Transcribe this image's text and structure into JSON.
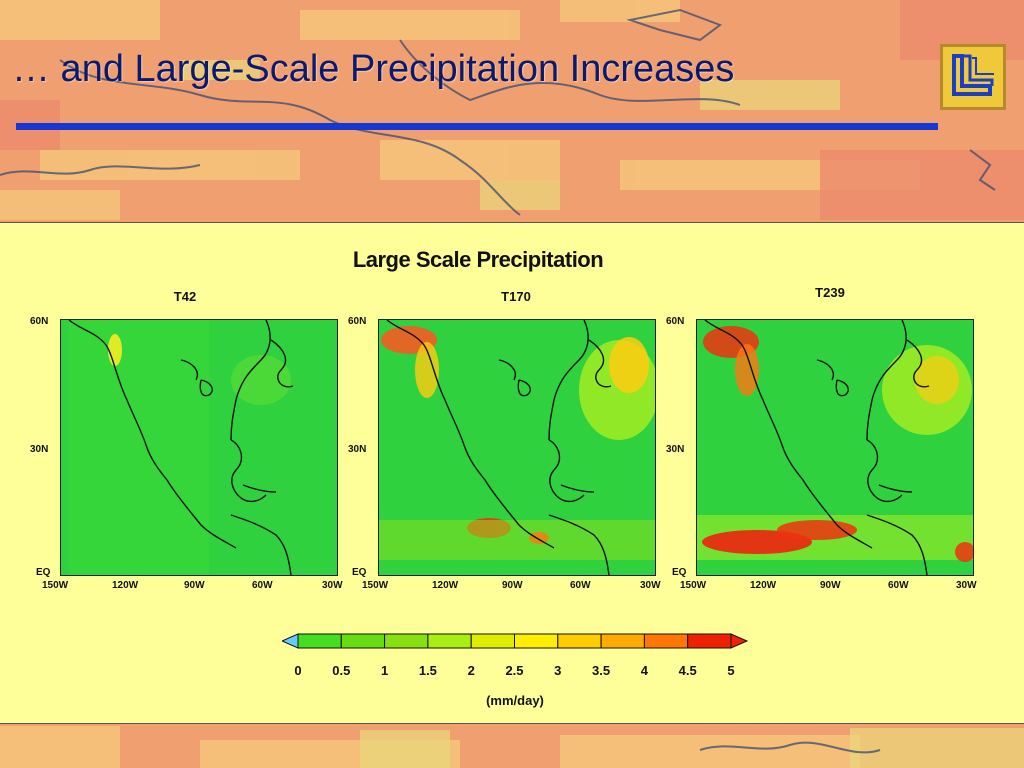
{
  "slide": {
    "title": "… and Large-Scale Precipitation Increases"
  },
  "figure": {
    "title": "Large Scale Precipitation",
    "units": "(mm/day)",
    "maps": [
      {
        "name": "T42",
        "lat_ticks": [
          "60N",
          "30N",
          "EQ"
        ],
        "lon_ticks": [
          "150W",
          "120W",
          "90W",
          "60W",
          "30W"
        ]
      },
      {
        "name": "T170",
        "lat_ticks": [
          "60N",
          "30N",
          "EQ"
        ],
        "lon_ticks": [
          "150W",
          "120W",
          "90W",
          "60W",
          "30W"
        ]
      },
      {
        "name": "T239",
        "lat_ticks": [
          "60N",
          "30N",
          "EQ"
        ],
        "lon_ticks": [
          "150W",
          "120W",
          "90W",
          "60W",
          "30W"
        ]
      }
    ],
    "colorbar": {
      "labels": [
        "0",
        "0.5",
        "1",
        "1.5",
        "2",
        "2.5",
        "3",
        "3.5",
        "4",
        "4.5",
        "5"
      ],
      "colors": [
        "#33cc33",
        "#44dd22",
        "#66dd11",
        "#88e011",
        "#aaee11",
        "#ddee00",
        "#ffee00",
        "#ffcc00",
        "#ffaa00",
        "#ff7700",
        "#ee2200"
      ],
      "under_color": "#66ccff",
      "over_color": "#ee2200"
    }
  },
  "colors": {
    "title_text": "#0a1a6e",
    "rule": "#1636d6",
    "panel": "#ffff9a",
    "map_base": "#2fd13f",
    "logo_bg": "#f0c93a",
    "logo_fg": "#1a3fc4"
  }
}
